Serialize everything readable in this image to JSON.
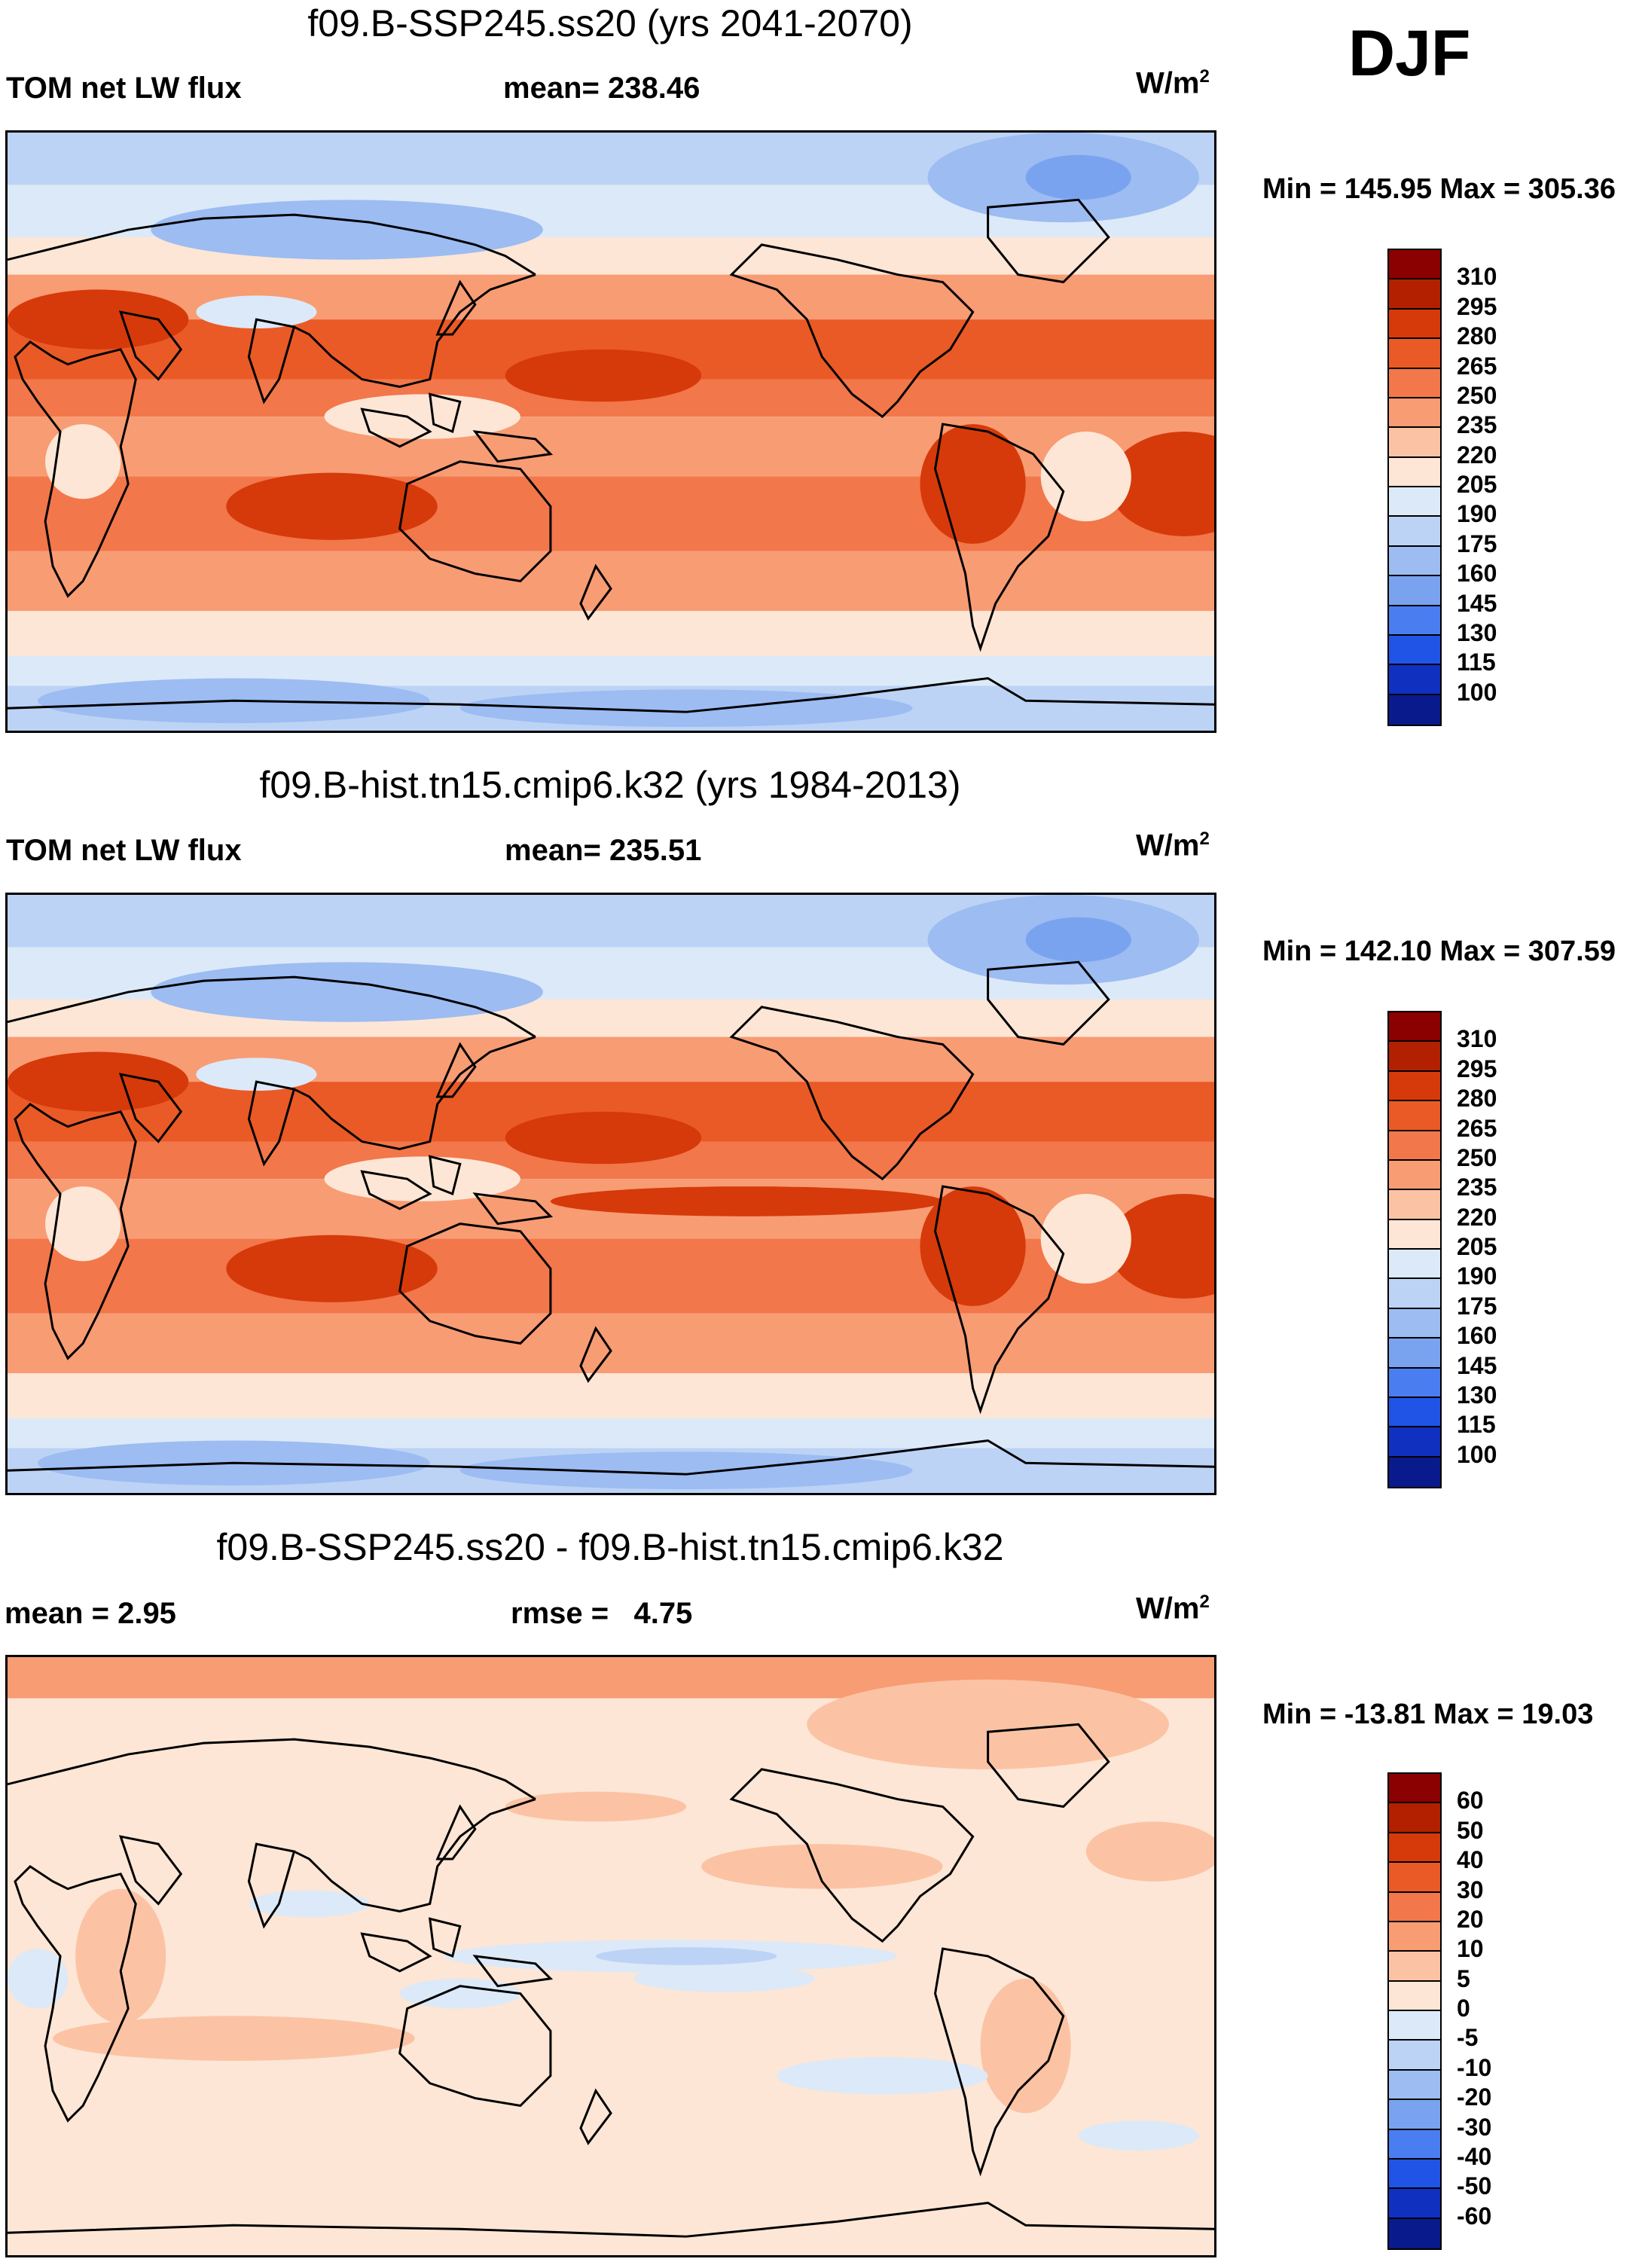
{
  "season": "DJF",
  "panels": [
    {
      "title": "f09.B-SSP245.ss20 (yrs 2041-2070)",
      "left_header": "TOM net LW flux",
      "center_label": "mean=",
      "center_value": "238.46",
      "units_base": "W/m",
      "units_exp": "2",
      "minmax": "Min = 145.95 Max = 305.36",
      "type": "field"
    },
    {
      "title": "f09.B-hist.tn15.cmip6.k32 (yrs 1984-2013)",
      "left_header": "TOM net LW flux",
      "center_label": "mean=",
      "center_value": "235.51",
      "units_base": "W/m",
      "units_exp": "2",
      "minmax": "Min = 142.10 Max = 307.59",
      "type": "field"
    },
    {
      "title": "f09.B-SSP245.ss20 - f09.B-hist.tn15.cmip6.k32",
      "left_header": "mean =   2.95",
      "center_label": "rmse =",
      "center_value": "4.75",
      "units_base": "W/m",
      "units_exp": "2",
      "minmax": "Min = -13.81 Max =  19.03",
      "type": "diff"
    }
  ],
  "colorbar_field": {
    "labels": [
      "310",
      "295",
      "280",
      "265",
      "250",
      "235",
      "220",
      "205",
      "190",
      "175",
      "160",
      "145",
      "130",
      "115",
      "100"
    ],
    "colors": [
      "#8b0000",
      "#b22000",
      "#d63a0a",
      "#ea5a26",
      "#f2774a",
      "#f89c74",
      "#fbc3a4",
      "#fde6d6",
      "#dce9f8",
      "#bcd3f5",
      "#9cbcf2",
      "#7aa3ef",
      "#4a7ef0",
      "#2054e6",
      "#1030c0",
      "#081a8c"
    ]
  },
  "colorbar_diff": {
    "labels": [
      "60",
      "50",
      "40",
      "30",
      "20",
      "10",
      "5",
      "0",
      "-5",
      "-10",
      "-20",
      "-30",
      "-40",
      "-50",
      "-60"
    ],
    "colors": [
      "#8b0000",
      "#b22000",
      "#d63a0a",
      "#ea5a26",
      "#f2774a",
      "#f89c74",
      "#fbc3a4",
      "#fde6d6",
      "#dce9f8",
      "#bcd3f5",
      "#9cbcf2",
      "#7aa3ef",
      "#4a7ef0",
      "#2054e6",
      "#1030c0",
      "#081a8c"
    ]
  }
}
